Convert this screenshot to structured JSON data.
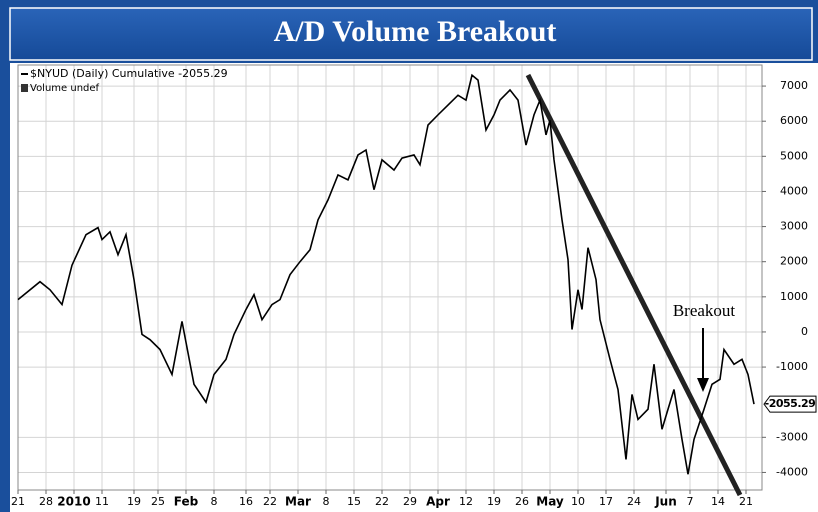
{
  "chart_data": {
    "type": "line",
    "title": "A/D Volume Breakout",
    "legend": [
      "$NYUD (Daily) Cumulative -2055.29",
      "Volume undef"
    ],
    "annotation": "Breakout",
    "last_value": -2055.29,
    "grid": true,
    "xlim": [
      0,
      186
    ],
    "ylim": [
      -4500,
      7600
    ],
    "xticks": [
      {
        "value": 0,
        "label": "21"
      },
      {
        "value": 7,
        "label": "28"
      },
      {
        "value": 14,
        "label": "2010"
      },
      {
        "value": 21,
        "label": "11"
      },
      {
        "value": 29,
        "label": "19"
      },
      {
        "value": 35,
        "label": "25"
      },
      {
        "value": 42,
        "label": "Feb"
      },
      {
        "value": 49,
        "label": "8"
      },
      {
        "value": 57,
        "label": "16"
      },
      {
        "value": 63,
        "label": "22"
      },
      {
        "value": 70,
        "label": "Mar"
      },
      {
        "value": 77,
        "label": "8"
      },
      {
        "value": 84,
        "label": "15"
      },
      {
        "value": 91,
        "label": "22"
      },
      {
        "value": 98,
        "label": "29"
      },
      {
        "value": 105,
        "label": "Apr"
      },
      {
        "value": 112,
        "label": "12"
      },
      {
        "value": 119,
        "label": "19"
      },
      {
        "value": 126,
        "label": "26"
      },
      {
        "value": 133,
        "label": "May"
      },
      {
        "value": 140,
        "label": "10"
      },
      {
        "value": 147,
        "label": "17"
      },
      {
        "value": 154,
        "label": "24"
      },
      {
        "value": 162,
        "label": "Jun"
      },
      {
        "value": 168,
        "label": "7"
      },
      {
        "value": 175,
        "label": "14"
      },
      {
        "value": 182,
        "label": "21"
      }
    ],
    "yticks": [
      7000,
      6000,
      5000,
      4000,
      3000,
      2000,
      1000,
      0,
      -1000,
      -3000,
      -4000
    ],
    "series": [
      {
        "name": "$NYUD (Daily) Cumulative",
        "color": "#000000",
        "x": [
          0,
          5.5,
          8,
          11,
          13.5,
          17,
          20,
          21,
          23,
          25,
          27,
          29,
          31,
          33,
          35.5,
          38.5,
          41,
          44,
          47,
          49,
          52,
          54,
          57,
          59,
          61,
          63.5,
          65.5,
          68,
          70.5,
          73,
          75,
          77.5,
          80,
          82.5,
          85,
          87,
          89,
          91,
          94,
          96,
          99,
          100.5,
          102.5,
          105,
          107.5,
          110,
          112,
          113.5,
          115,
          117,
          119,
          120.5,
          123,
          125,
          127,
          129,
          130.5,
          132,
          133,
          134,
          136,
          137.5,
          138.5,
          140,
          141,
          142.5,
          144.5,
          145.5,
          148,
          150,
          152,
          153.5,
          155,
          157.5,
          159,
          161,
          162.5,
          164,
          166,
          167.5,
          169,
          171.5,
          173.5,
          175.5,
          176.5,
          179,
          181,
          182.5,
          184
        ],
        "values": [
          920,
          1430,
          1200,
          780,
          1900,
          2770,
          2970,
          2630,
          2850,
          2200,
          2770,
          1490,
          -70,
          -220,
          -500,
          -1210,
          300,
          -1490,
          -2000,
          -1210,
          -780,
          -70,
          640,
          1060,
          350,
          780,
          920,
          1630,
          2000,
          2340,
          3190,
          3760,
          4470,
          4330,
          5040,
          5180,
          4050,
          4900,
          4610,
          4950,
          5040,
          4760,
          5890,
          6180,
          6460,
          6740,
          6600,
          7310,
          7170,
          5750,
          6180,
          6600,
          6890,
          6600,
          5320,
          6180,
          6600,
          5610,
          6030,
          4900,
          3190,
          2060,
          70,
          1200,
          640,
          2400,
          1490,
          350,
          -780,
          -1640,
          -3630,
          -1780,
          -2490,
          -2200,
          -920,
          -2770,
          -2200,
          -1640,
          -3060,
          -4050,
          -3060,
          -2200,
          -1490,
          -1350,
          -500,
          -920,
          -780,
          -1210,
          -2055.29
        ]
      }
    ]
  }
}
